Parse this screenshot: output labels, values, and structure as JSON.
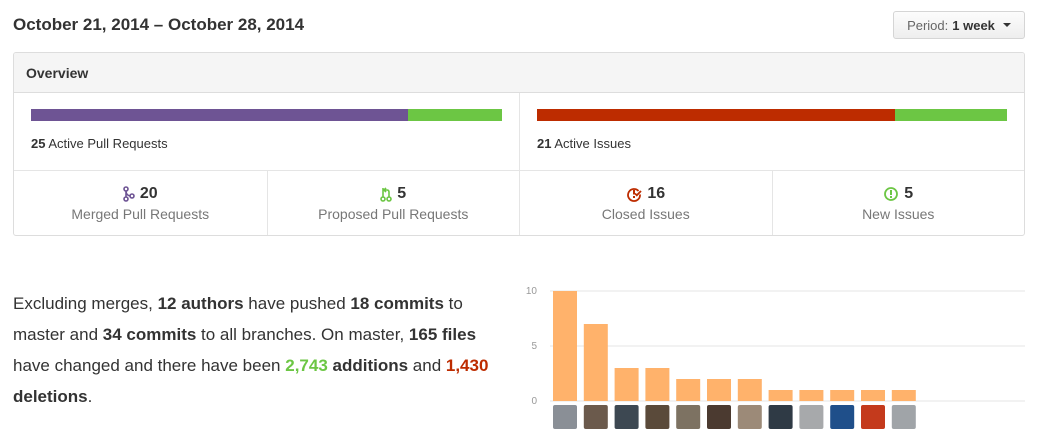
{
  "header": {
    "date_range": "October 21, 2014 – October 28, 2014",
    "period_label": "Period:",
    "period_value": "1 week"
  },
  "overview": {
    "title": "Overview",
    "pull_requests": {
      "count": "25",
      "label": "Active Pull Requests",
      "merged_fraction": 0.8,
      "colors": {
        "merged": "#6e5494",
        "proposed": "#6cc644"
      }
    },
    "issues": {
      "count": "21",
      "label": "Active Issues",
      "closed_fraction": 0.762,
      "colors": {
        "closed": "#bd2c00",
        "new": "#6cc644"
      }
    },
    "stats": [
      {
        "icon": "git-merge-icon",
        "value": "20",
        "label": "Merged Pull Requests",
        "color": "#6e5494"
      },
      {
        "icon": "git-pull-request-icon",
        "value": "5",
        "label": "Proposed Pull Requests",
        "color": "#6cc644"
      },
      {
        "icon": "issue-closed-icon",
        "value": "16",
        "label": "Closed Issues",
        "color": "#bd2c00"
      },
      {
        "icon": "issue-opened-icon",
        "value": "5",
        "label": "New Issues",
        "color": "#6cc644"
      }
    ]
  },
  "summary": {
    "t1": "Excluding merges, ",
    "authors": "12 authors",
    "t2": " have pushed ",
    "commits_master": "18 commits",
    "t3": " to master and ",
    "commits_all": "34 commits",
    "t4": " to all branches. On master, ",
    "files": "165 files",
    "t5": " have changed and there have been ",
    "additions_num": "2,743",
    "additions_word": " additions",
    "t6": " and ",
    "deletions_num": "1,430",
    "deletions_word": " deletions",
    "t7": "."
  },
  "chart_data": {
    "type": "bar",
    "values": [
      10,
      7,
      3,
      3,
      2,
      2,
      2,
      1,
      1,
      1,
      1,
      1
    ],
    "yticks": [
      0,
      5,
      10
    ],
    "ylim": [
      0,
      10
    ],
    "bar_color": "#ffb26b",
    "gridlines": true
  }
}
